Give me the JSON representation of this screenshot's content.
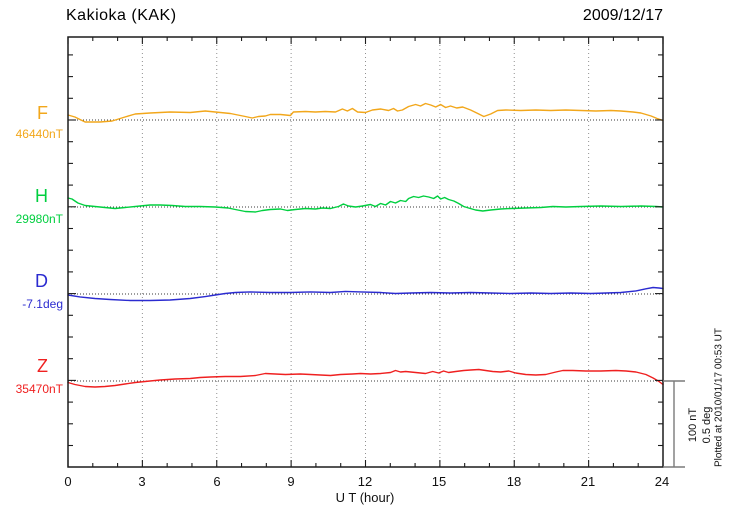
{
  "header": {
    "title": "Kakioka (KAK)",
    "date": "2009/12/17"
  },
  "axis": {
    "xlabel": "U T (hour)",
    "x_ticks": [
      "0",
      "3",
      "6",
      "9",
      "12",
      "15",
      "18",
      "21",
      "24"
    ]
  },
  "scalebar": {
    "line1": "100 nT",
    "line2": "0.5 deg"
  },
  "footer": {
    "note": "Plotted at 2010/01/17 00:53 UT"
  },
  "colors": {
    "frame": "#1c1c1c",
    "gridline": "#909090",
    "baseline_dots": "#3a3a3a",
    "scalebar": "#7a7a7a",
    "text": "#000000"
  },
  "chart_data": {
    "type": "line",
    "title": "Kakioka (KAK) magnetogram 2009/12/17",
    "xlabel": "U T (hour)",
    "x_range": [
      0,
      24
    ],
    "x_tick_major": 3,
    "x_tick_minor": 1,
    "grid": {
      "x_major": [
        3,
        6,
        9,
        12,
        15,
        18,
        21
      ]
    },
    "scale": {
      "nT_per_division": 100,
      "deg_per_division": 0.5
    },
    "legend_position": "left",
    "series": [
      {
        "name": "F",
        "unit": "nT",
        "baseline_label": "46440nT",
        "baseline_value": 46440,
        "color": "#f2a71b",
        "points": [
          [
            0,
            46445.8
          ],
          [
            0.28,
            46443.5
          ],
          [
            0.69,
            46437.7
          ],
          [
            1.29,
            46437.7
          ],
          [
            1.78,
            46438.8
          ],
          [
            2.3,
            46443.5
          ],
          [
            2.71,
            46447
          ],
          [
            3.31,
            46448.1
          ],
          [
            4.12,
            46449.3
          ],
          [
            4.93,
            46448.7
          ],
          [
            5.54,
            46450.5
          ],
          [
            5.94,
            46449.3
          ],
          [
            6.55,
            46447.6
          ],
          [
            7.15,
            46444.1
          ],
          [
            7.43,
            46442.3
          ],
          [
            7.68,
            46444.1
          ],
          [
            7.96,
            46444.7
          ],
          [
            8.16,
            46446.4
          ],
          [
            8.57,
            46446.4
          ],
          [
            8.97,
            46445.2
          ],
          [
            9.09,
            46449.3
          ],
          [
            9.58,
            46449.9
          ],
          [
            9.98,
            46449.3
          ],
          [
            10.38,
            46449.9
          ],
          [
            10.79,
            46449.3
          ],
          [
            11.07,
            46452.8
          ],
          [
            11.27,
            46450.5
          ],
          [
            11.47,
            46453.4
          ],
          [
            11.68,
            46449.3
          ],
          [
            12,
            46448.7
          ],
          [
            12.28,
            46451.6
          ],
          [
            12.61,
            46452.8
          ],
          [
            12.93,
            46451
          ],
          [
            13.13,
            46453.4
          ],
          [
            13.29,
            46450.5
          ],
          [
            13.49,
            46451.6
          ],
          [
            13.74,
            46455.7
          ],
          [
            14.02,
            46458
          ],
          [
            14.22,
            46456.3
          ],
          [
            14.42,
            46459.2
          ],
          [
            14.63,
            46457.4
          ],
          [
            14.83,
            46455.1
          ],
          [
            15.03,
            46458
          ],
          [
            15.23,
            46454.5
          ],
          [
            15.43,
            46456.3
          ],
          [
            15.68,
            46454
          ],
          [
            15.92,
            46455.1
          ],
          [
            16.24,
            46451.6
          ],
          [
            16.53,
            46447.6
          ],
          [
            16.77,
            46444.1
          ],
          [
            17.05,
            46447
          ],
          [
            17.33,
            46451
          ],
          [
            17.66,
            46451.6
          ],
          [
            18.26,
            46451
          ],
          [
            18.87,
            46451.6
          ],
          [
            19.47,
            46451
          ],
          [
            20.08,
            46451.6
          ],
          [
            20.69,
            46451
          ],
          [
            21.29,
            46450.5
          ],
          [
            21.9,
            46451
          ],
          [
            22.3,
            46450.5
          ],
          [
            22.79,
            46449.3
          ],
          [
            23.11,
            46448.1
          ],
          [
            23.52,
            46444.7
          ],
          [
            23.76,
            46441.7
          ],
          [
            24,
            46439.4
          ]
        ]
      },
      {
        "name": "H",
        "unit": "nT",
        "baseline_label": "29980nT",
        "baseline_value": 29980,
        "color": "#00cf3f",
        "points": [
          [
            0,
            29990.5
          ],
          [
            0.16,
            29989.3
          ],
          [
            0.4,
            29984.7
          ],
          [
            0.69,
            29981.7
          ],
          [
            1.09,
            29980.6
          ],
          [
            1.49,
            29979.4
          ],
          [
            1.9,
            29978.3
          ],
          [
            2.3,
            29979.4
          ],
          [
            2.91,
            29981.2
          ],
          [
            3.31,
            29982.3
          ],
          [
            3.72,
            29982.3
          ],
          [
            4.2,
            29981.7
          ],
          [
            4.73,
            29980.6
          ],
          [
            5.33,
            29980.6
          ],
          [
            5.94,
            29980
          ],
          [
            6.46,
            29978.8
          ],
          [
            6.75,
            29977.1
          ],
          [
            7.15,
            29974.8
          ],
          [
            7.56,
            29974.2
          ],
          [
            7.84,
            29975.9
          ],
          [
            8.16,
            29977.1
          ],
          [
            8.57,
            29977.7
          ],
          [
            8.85,
            29975.9
          ],
          [
            9.17,
            29977.1
          ],
          [
            9.58,
            29978.3
          ],
          [
            9.98,
            29977.7
          ],
          [
            10.26,
            29978.8
          ],
          [
            10.59,
            29978.3
          ],
          [
            10.91,
            29980.6
          ],
          [
            11.11,
            29983.5
          ],
          [
            11.31,
            29981.2
          ],
          [
            11.6,
            29980
          ],
          [
            11.88,
            29981.2
          ],
          [
            12.2,
            29982.9
          ],
          [
            12.4,
            29980.6
          ],
          [
            12.61,
            29984.1
          ],
          [
            12.81,
            29982.3
          ],
          [
            13.01,
            29986.4
          ],
          [
            13.21,
            29984.7
          ],
          [
            13.41,
            29987.6
          ],
          [
            13.62,
            29986.4
          ],
          [
            13.74,
            29989.9
          ],
          [
            13.94,
            29992.2
          ],
          [
            14.14,
            29991
          ],
          [
            14.34,
            29992.8
          ],
          [
            14.55,
            29991.6
          ],
          [
            14.75,
            29989.9
          ],
          [
            14.91,
            29992.8
          ],
          [
            15.03,
            29989.3
          ],
          [
            15.19,
            29991
          ],
          [
            15.35,
            29988.7
          ],
          [
            15.56,
            29987
          ],
          [
            15.76,
            29984.1
          ],
          [
            15.96,
            29980.6
          ],
          [
            16.16,
            29978.8
          ],
          [
            16.44,
            29976.5
          ],
          [
            16.73,
            29975.3
          ],
          [
            17.05,
            29976.5
          ],
          [
            17.45,
            29977.7
          ],
          [
            17.86,
            29978.3
          ],
          [
            18.46,
            29978.8
          ],
          [
            19.07,
            29979.4
          ],
          [
            19.56,
            29980.6
          ],
          [
            20.08,
            29980
          ],
          [
            20.69,
            29980.6
          ],
          [
            21.49,
            29981.2
          ],
          [
            22.3,
            29980.6
          ],
          [
            23.11,
            29981.2
          ],
          [
            23.72,
            29980.6
          ],
          [
            24,
            29980
          ]
        ]
      },
      {
        "name": "D",
        "unit": "deg",
        "baseline_label": "-7.1deg",
        "baseline_value": -7.1,
        "color": "#2b2bd0",
        "points": [
          [
            0,
            -7.106
          ],
          [
            0.48,
            -7.117
          ],
          [
            1.09,
            -7.126
          ],
          [
            1.7,
            -7.132
          ],
          [
            2.51,
            -7.138
          ],
          [
            3.31,
            -7.138
          ],
          [
            4.12,
            -7.135
          ],
          [
            4.93,
            -7.126
          ],
          [
            5.54,
            -7.115
          ],
          [
            5.94,
            -7.106
          ],
          [
            6.34,
            -7.097
          ],
          [
            6.75,
            -7.091
          ],
          [
            7.35,
            -7.088
          ],
          [
            8.16,
            -7.091
          ],
          [
            8.97,
            -7.091
          ],
          [
            9.78,
            -7.088
          ],
          [
            10.59,
            -7.091
          ],
          [
            11.19,
            -7.085
          ],
          [
            11.8,
            -7.088
          ],
          [
            12.61,
            -7.091
          ],
          [
            13.21,
            -7.097
          ],
          [
            13.82,
            -7.094
          ],
          [
            14.63,
            -7.091
          ],
          [
            15.43,
            -7.094
          ],
          [
            16.24,
            -7.091
          ],
          [
            17.05,
            -7.094
          ],
          [
            17.86,
            -7.097
          ],
          [
            18.67,
            -7.094
          ],
          [
            19.47,
            -7.097
          ],
          [
            20.28,
            -7.094
          ],
          [
            21.09,
            -7.097
          ],
          [
            21.7,
            -7.094
          ],
          [
            22.3,
            -7.091
          ],
          [
            22.91,
            -7.082
          ],
          [
            23.31,
            -7.07
          ],
          [
            23.6,
            -7.062
          ],
          [
            23.84,
            -7.065
          ],
          [
            24,
            -7.068
          ]
        ]
      },
      {
        "name": "Z",
        "unit": "nT",
        "baseline_label": "35470nT",
        "baseline_value": 35470,
        "color": "#ef2020",
        "points": [
          [
            0,
            35468.3
          ],
          [
            0.28,
            35465.9
          ],
          [
            0.69,
            35463.6
          ],
          [
            1.09,
            35463
          ],
          [
            1.49,
            35463.6
          ],
          [
            1.9,
            35464.8
          ],
          [
            2.3,
            35466.5
          ],
          [
            2.71,
            35468.3
          ],
          [
            3.11,
            35469.4
          ],
          [
            3.72,
            35471.2
          ],
          [
            4.32,
            35472.3
          ],
          [
            4.93,
            35472.9
          ],
          [
            5.33,
            35474.1
          ],
          [
            5.74,
            35474.7
          ],
          [
            6.34,
            35475.2
          ],
          [
            6.95,
            35475.2
          ],
          [
            7.56,
            35476.4
          ],
          [
            7.96,
            35478.7
          ],
          [
            8.36,
            35478.1
          ],
          [
            8.77,
            35477.6
          ],
          [
            9.37,
            35478.1
          ],
          [
            9.78,
            35477.6
          ],
          [
            10.18,
            35477
          ],
          [
            10.59,
            35476.4
          ],
          [
            10.99,
            35477.6
          ],
          [
            11.47,
            35478.1
          ],
          [
            11.8,
            35478.7
          ],
          [
            12.2,
            35478.1
          ],
          [
            12.61,
            35478.7
          ],
          [
            13.01,
            35479.9
          ],
          [
            13.21,
            35482.2
          ],
          [
            13.41,
            35480.5
          ],
          [
            13.62,
            35481
          ],
          [
            14.02,
            35479.9
          ],
          [
            14.42,
            35478.7
          ],
          [
            14.71,
            35481
          ],
          [
            14.95,
            35479.3
          ],
          [
            15.15,
            35481.6
          ],
          [
            15.35,
            35479.9
          ],
          [
            15.64,
            35481
          ],
          [
            15.96,
            35482.2
          ],
          [
            16.24,
            35482.8
          ],
          [
            16.57,
            35483.4
          ],
          [
            16.85,
            35482.2
          ],
          [
            17.13,
            35481
          ],
          [
            17.45,
            35480.5
          ],
          [
            17.78,
            35481.6
          ],
          [
            18.06,
            35479.3
          ],
          [
            18.46,
            35477.6
          ],
          [
            18.87,
            35477
          ],
          [
            19.27,
            35477.6
          ],
          [
            19.68,
            35480.5
          ],
          [
            19.96,
            35482.2
          ],
          [
            20.36,
            35482.2
          ],
          [
            20.89,
            35481.6
          ],
          [
            21.49,
            35481.6
          ],
          [
            22.1,
            35482.2
          ],
          [
            22.51,
            35481.6
          ],
          [
            22.91,
            35480.5
          ],
          [
            23.31,
            35477.6
          ],
          [
            23.6,
            35473.5
          ],
          [
            23.84,
            35469.4
          ],
          [
            24,
            35465.9
          ]
        ]
      }
    ]
  }
}
